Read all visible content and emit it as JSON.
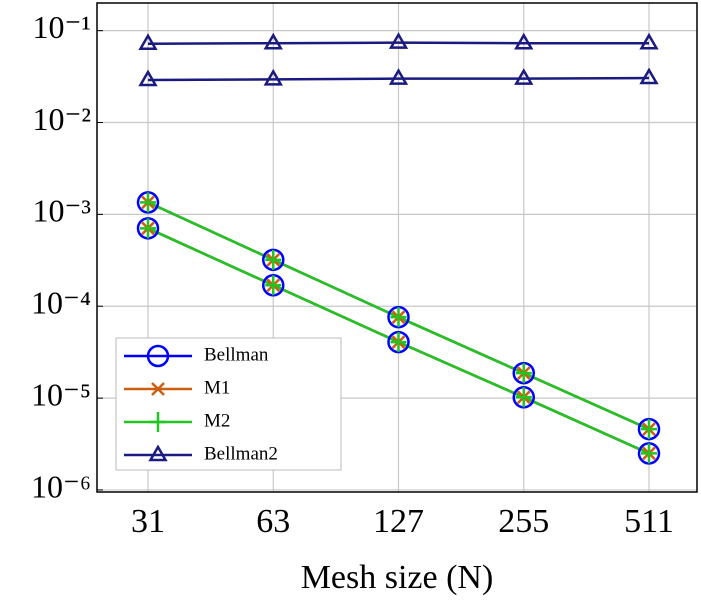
{
  "chart_data": {
    "type": "line",
    "x_label": "Mesh size (N)",
    "categories": [
      "31",
      "63",
      "127",
      "255",
      "511"
    ],
    "log_y": true,
    "grid": true,
    "legend": "lower-left",
    "ylim": [
      9.5e-07,
      0.2
    ],
    "yticks": [
      {
        "value": 1e-06,
        "label": "10⁻⁶"
      },
      {
        "value": 1e-05,
        "label": "10⁻⁵"
      },
      {
        "value": 0.0001,
        "label": "10⁻⁴"
      },
      {
        "value": 0.001,
        "label": "10⁻³"
      },
      {
        "value": 0.01,
        "label": "10⁻²"
      },
      {
        "value": 0.1,
        "label": "10⁻¹"
      }
    ],
    "series": [
      {
        "name": "Bellman",
        "color": "#0000ff",
        "marker": "circle",
        "lines": [
          [
            0.00135,
            0.00032,
            7.6e-05,
            1.87e-05,
            4.6e-06
          ],
          [
            0.000705,
            0.000169,
            4.07e-05,
            1.02e-05,
            2.5e-06
          ]
        ]
      },
      {
        "name": "M1",
        "color": "#cc5f10",
        "marker": "x",
        "lines": [
          [
            0.00135,
            0.00032,
            7.6e-05,
            1.87e-05,
            4.6e-06
          ],
          [
            0.000705,
            0.000169,
            4.07e-05,
            1.02e-05,
            2.5e-06
          ]
        ]
      },
      {
        "name": "M2",
        "color": "#22c422",
        "marker": "plus",
        "lines": [
          [
            0.00135,
            0.00032,
            7.6e-05,
            1.87e-05,
            4.6e-06
          ],
          [
            0.000705,
            0.000169,
            4.07e-05,
            1.02e-05,
            2.5e-06
          ]
        ]
      },
      {
        "name": "Bellman2",
        "color": "#1a1a80",
        "marker": "triangle",
        "lines": [
          [
            0.072,
            0.073,
            0.074,
            0.073,
            0.073
          ],
          [
            0.029,
            0.0295,
            0.03,
            0.03,
            0.0305
          ]
        ]
      }
    ]
  }
}
